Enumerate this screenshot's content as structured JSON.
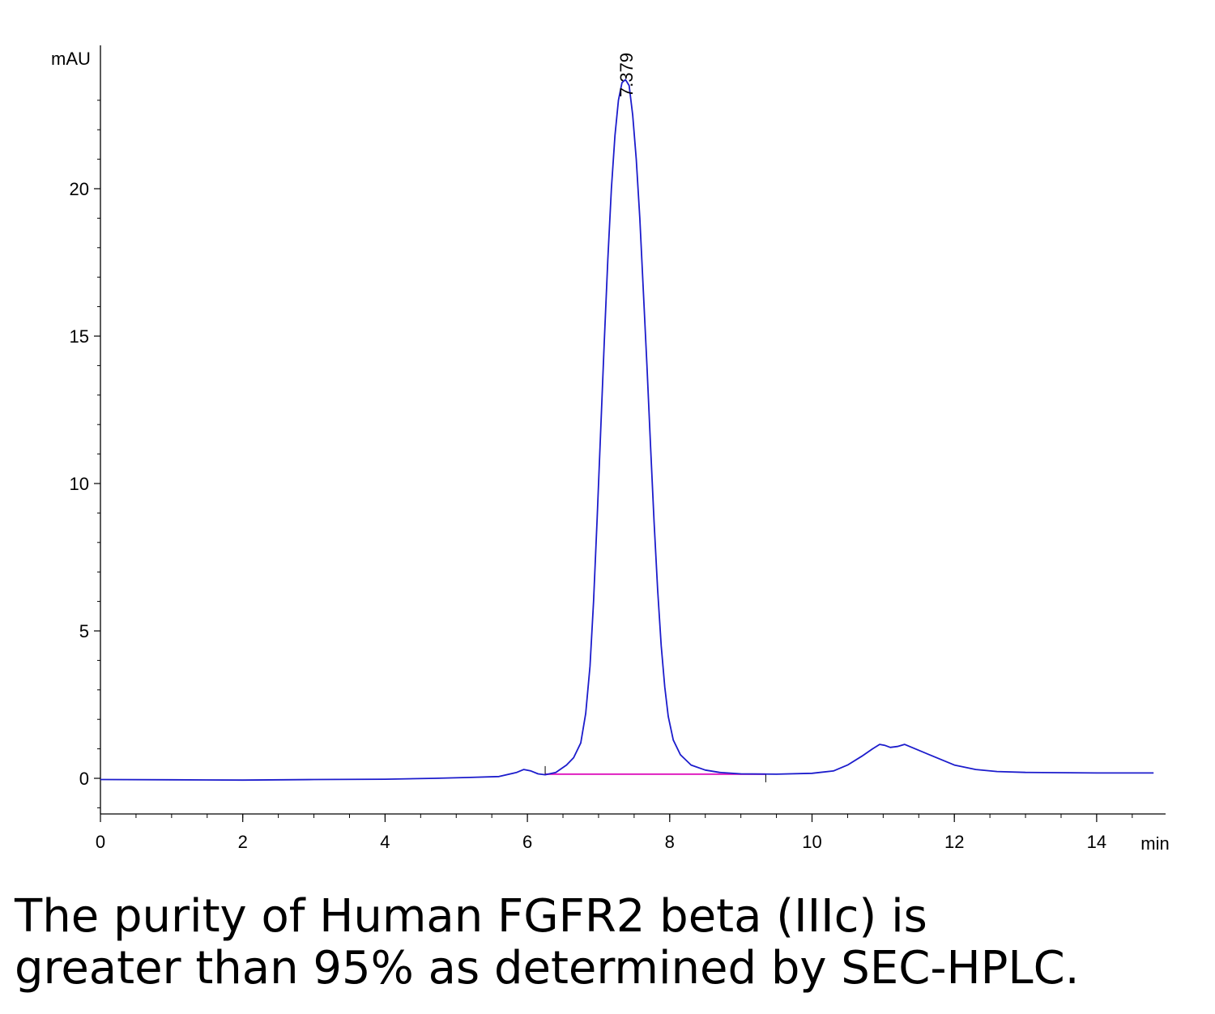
{
  "chart_data": {
    "type": "line",
    "xlabel": "min",
    "ylabel": "mAU",
    "xlim": [
      0,
      15
    ],
    "ylim": [
      -1.3,
      24.5
    ],
    "x_ticks": [
      0,
      2,
      4,
      6,
      8,
      10,
      12,
      14
    ],
    "y_ticks": [
      0,
      5,
      10,
      15,
      20
    ],
    "colors": {
      "trace": "#1c1ccc",
      "baseline": "#e020c0",
      "axis": "#000000"
    },
    "series": [
      {
        "x": [
          0,
          1,
          2,
          3,
          4,
          4.7,
          5.2,
          5.6,
          5.85,
          5.95,
          6.05,
          6.15,
          6.25,
          6.4,
          6.55,
          6.65,
          6.75,
          6.82,
          6.88,
          6.93,
          6.98,
          7.03,
          7.08,
          7.13,
          7.18,
          7.23,
          7.28,
          7.33,
          7.379,
          7.43,
          7.48,
          7.53,
          7.58,
          7.63,
          7.68,
          7.73,
          7.78,
          7.83,
          7.88,
          7.93,
          7.98,
          8.05,
          8.15,
          8.3,
          8.5,
          8.7,
          9.0,
          9.5,
          10.0,
          10.3,
          10.5,
          10.7,
          10.85,
          10.95,
          11.02,
          11.1,
          11.2,
          11.3,
          11.45,
          11.7,
          12.0,
          12.3,
          12.6,
          13.0,
          14.0,
          14.8
        ],
        "y": [
          -0.04,
          -0.05,
          -0.06,
          -0.04,
          -0.03,
          0.0,
          0.03,
          0.06,
          0.2,
          0.3,
          0.25,
          0.15,
          0.12,
          0.2,
          0.45,
          0.7,
          1.2,
          2.2,
          3.8,
          6.0,
          8.8,
          11.8,
          14.8,
          17.6,
          20.0,
          21.8,
          23.0,
          23.6,
          23.7,
          23.5,
          22.5,
          21.0,
          19.0,
          16.5,
          14.0,
          11.3,
          8.7,
          6.4,
          4.5,
          3.1,
          2.1,
          1.3,
          0.8,
          0.45,
          0.28,
          0.2,
          0.15,
          0.14,
          0.17,
          0.25,
          0.45,
          0.75,
          1.0,
          1.15,
          1.12,
          1.05,
          1.08,
          1.15,
          1.0,
          0.75,
          0.45,
          0.3,
          0.23,
          0.2,
          0.18,
          0.18
        ]
      }
    ],
    "peak_labels": [
      {
        "x": 7.379,
        "text": "7.379"
      }
    ],
    "integration_baseline": {
      "x": [
        6.25,
        9.35
      ],
      "y": [
        0.14,
        0.14
      ]
    }
  },
  "caption": {
    "line1": "The purity of Human FGFR2 beta (IIIc) is",
    "line2": "greater than 95% as determined by SEC-HPLC."
  }
}
